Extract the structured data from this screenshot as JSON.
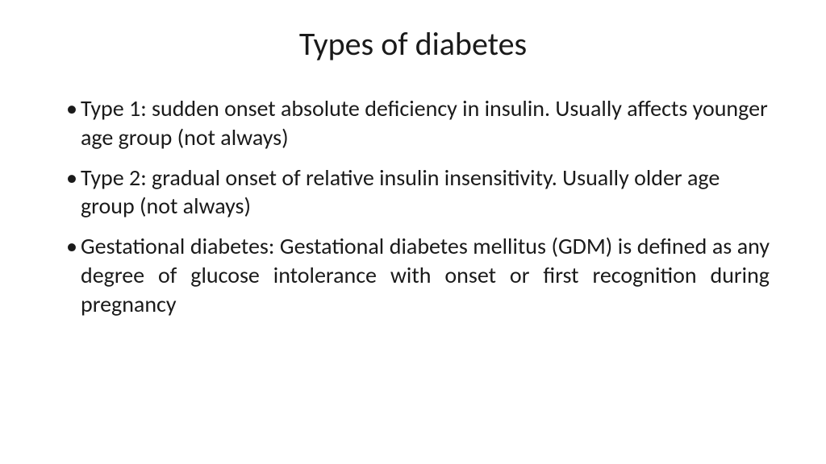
{
  "slide": {
    "title": "Types of diabetes",
    "bullets": [
      {
        "text": "Type 1: sudden onset absolute deficiency in insulin. Usually affects younger age group (not always)",
        "justify": false
      },
      {
        "text": "Type 2: gradual onset of relative insulin insensitivity. Usually older age group (not always)",
        "justify": false
      },
      {
        "text": "Gestational diabetes: Gestational diabetes mellitus (GDM) is defined as any degree of glucose intolerance with onset or first recognition during pregnancy",
        "justify": true
      }
    ],
    "style": {
      "background_color": "#ffffff",
      "text_color": "#1a1a1a",
      "title_fontsize": 40,
      "body_fontsize": 28,
      "font_family": "Calibri"
    }
  }
}
